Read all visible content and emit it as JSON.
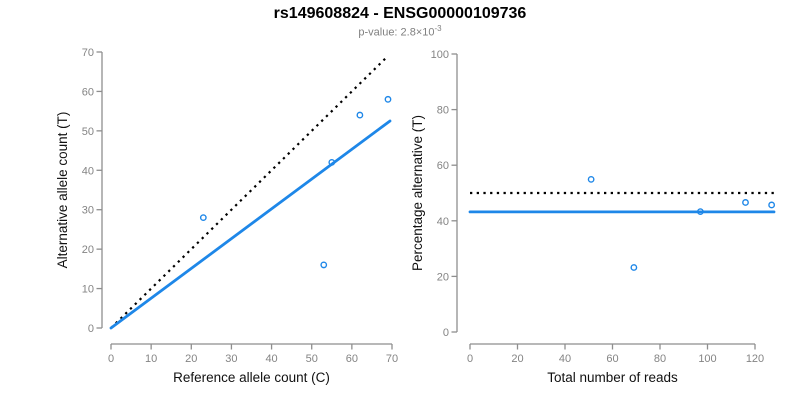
{
  "header": {
    "title": "rs149608824 - ENSG00000109736",
    "subtitle_prefix": "p-value: 2.8×10",
    "subtitle_exponent": "-3"
  },
  "colors": {
    "accent_blue": "#1E87E8",
    "dotted_black": "#000000",
    "axis_line_gray": "#8e8e8e",
    "tick_label_gray": "#848484",
    "axis_title_black": "#111111",
    "subtitle_gray": "#808080"
  },
  "chart_data": [
    {
      "type": "scatter",
      "name": "allele-counts-scatter",
      "xlabel": "Reference allele count (C)",
      "ylabel": "Alternative allele count (T)",
      "xlim": [
        0,
        70
      ],
      "ylim": [
        0,
        70
      ],
      "xticks": [
        0,
        10,
        20,
        30,
        40,
        50,
        60,
        70
      ],
      "yticks": [
        0,
        10,
        20,
        30,
        40,
        50,
        60,
        70
      ],
      "grid": false,
      "legend": false,
      "points": [
        [
          23,
          28
        ],
        [
          53,
          16
        ],
        [
          55,
          42
        ],
        [
          62,
          54
        ],
        [
          69,
          58
        ]
      ],
      "lines": [
        {
          "name": "expected-identity-line",
          "style": "dotted",
          "color": "#000000",
          "x": [
            0,
            69
          ],
          "y": [
            0,
            69
          ]
        },
        {
          "name": "fitted-regression-line",
          "style": "solid",
          "color": "#1E87E8",
          "x": [
            0,
            69.5
          ],
          "y": [
            0,
            52.5
          ]
        }
      ]
    },
    {
      "type": "scatter",
      "name": "percentage-alternative-scatter",
      "xlabel": "Total number of reads",
      "ylabel": "Percentage alternative (T)",
      "xlim": [
        0,
        120
      ],
      "ylim": [
        0,
        100
      ],
      "xticks": [
        0,
        20,
        40,
        60,
        80,
        100,
        120
      ],
      "yticks": [
        0,
        20,
        40,
        60,
        80,
        100
      ],
      "grid": false,
      "legend": false,
      "points": [
        [
          51,
          54.9
        ],
        [
          69,
          23.2
        ],
        [
          97,
          43.3
        ],
        [
          116,
          46.6
        ],
        [
          127,
          45.7
        ]
      ],
      "lines": [
        {
          "name": "expected-50-percent-line",
          "style": "dotted",
          "color": "#000000",
          "x": [
            0,
            128
          ],
          "y": [
            50,
            50
          ]
        },
        {
          "name": "observed-percentage-line",
          "style": "solid",
          "color": "#1E87E8",
          "x": [
            0,
            128
          ],
          "y": [
            43.2,
            43.2
          ]
        }
      ]
    }
  ]
}
